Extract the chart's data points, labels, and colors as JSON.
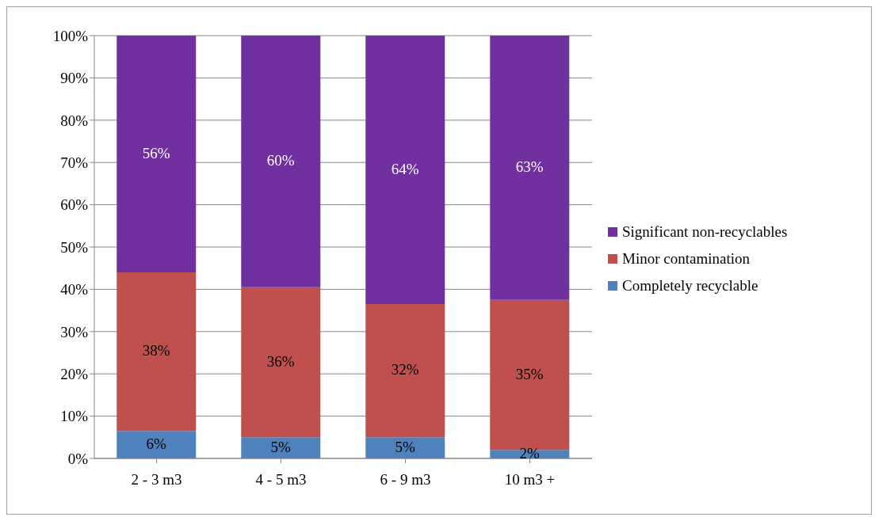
{
  "chart_data": {
    "type": "bar",
    "stacked": true,
    "categories": [
      "2 - 3 m3",
      "4 - 5 m3",
      "6 - 9 m3",
      "10 m3 +"
    ],
    "series": [
      {
        "name": "Completely recyclable",
        "color": "#4f81bd",
        "values": [
          6.5,
          5,
          5,
          2
        ],
        "value_labels": [
          "6%",
          "5%",
          "5%",
          "2%"
        ]
      },
      {
        "name": "Minor contamination",
        "color": "#c0504d",
        "values": [
          37.5,
          35.5,
          31.5,
          35.5
        ],
        "value_labels": [
          "38%",
          "36%",
          "32%",
          "35%"
        ]
      },
      {
        "name": "Significant non-recyclables",
        "color": "#7030a0",
        "values": [
          56,
          59.5,
          63.5,
          62.5
        ],
        "value_labels": [
          "56%",
          "60%",
          "64%",
          "63%"
        ]
      }
    ],
    "ylim": [
      0,
      100
    ],
    "yticks": [
      {
        "value": 0,
        "label": "0%"
      },
      {
        "value": 10,
        "label": "10%"
      },
      {
        "value": 20,
        "label": "20%"
      },
      {
        "value": 30,
        "label": "30%"
      },
      {
        "value": 40,
        "label": "40%"
      },
      {
        "value": 50,
        "label": "50%"
      },
      {
        "value": 60,
        "label": "60%"
      },
      {
        "value": 70,
        "label": "70%"
      },
      {
        "value": 80,
        "label": "80%"
      },
      {
        "value": 90,
        "label": "90%"
      },
      {
        "value": 100,
        "label": "100%"
      }
    ],
    "grid": "y",
    "legend": "right"
  }
}
